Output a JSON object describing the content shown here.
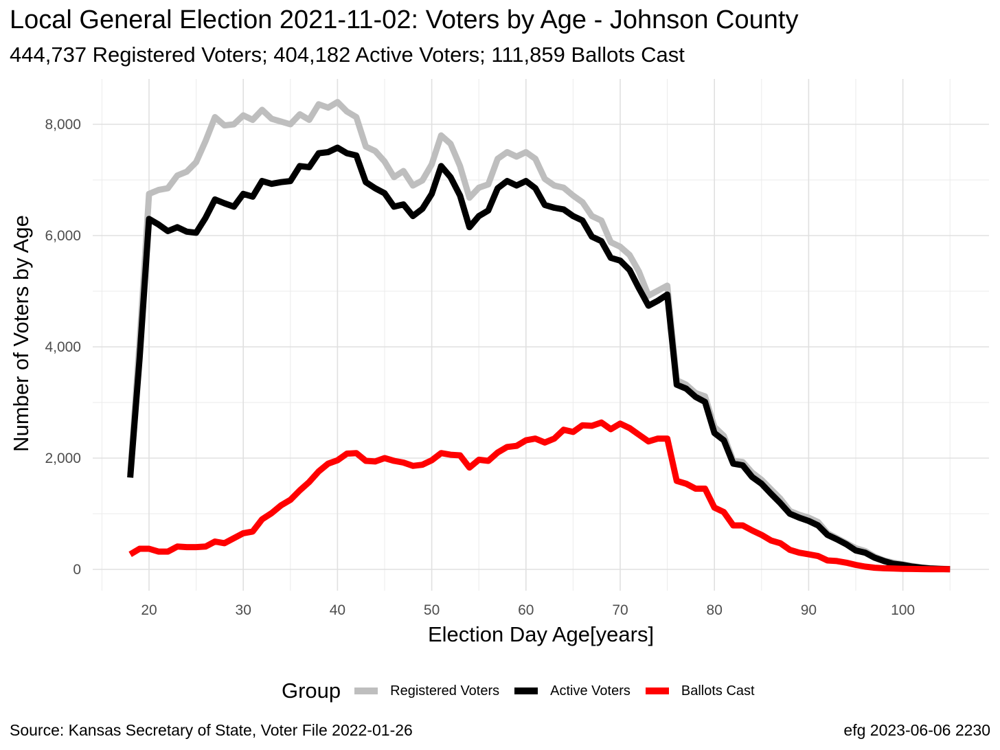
{
  "title": "Local General Election 2021-11-02:  Voters by Age - Johnson County",
  "subtitle": "444,737 Registered Voters; 404,182 Active Voters; 111,859 Ballots Cast",
  "caption_left": "Source:  Kansas Secretary of State, Voter File  2022-01-26",
  "caption_right": "efg 2023-06-06 2230",
  "legend_title": "Group",
  "chart_data": {
    "type": "line",
    "xlabel": "Election Day Age[years]",
    "ylabel": "Number of Voters by Age",
    "xlim": [
      18,
      105
    ],
    "ylim": [
      0,
      8400
    ],
    "xticks": [
      20,
      30,
      40,
      50,
      60,
      70,
      80,
      90,
      100
    ],
    "xtick_labels": [
      "20",
      "30",
      "40",
      "50",
      "60",
      "70",
      "80",
      "90",
      "100"
    ],
    "yticks": [
      0,
      2000,
      4000,
      6000,
      8000
    ],
    "ytick_labels": [
      "0",
      "2,000",
      "4,000",
      "6,000",
      "8,000"
    ],
    "grid": true,
    "legend_position": "bottom",
    "x": [
      18,
      19,
      20,
      21,
      22,
      23,
      24,
      25,
      26,
      27,
      28,
      29,
      30,
      31,
      32,
      33,
      34,
      35,
      36,
      37,
      38,
      39,
      40,
      41,
      42,
      43,
      44,
      45,
      46,
      47,
      48,
      49,
      50,
      51,
      52,
      53,
      54,
      55,
      56,
      57,
      58,
      59,
      60,
      61,
      62,
      63,
      64,
      65,
      66,
      67,
      68,
      69,
      70,
      71,
      72,
      73,
      74,
      75,
      76,
      77,
      78,
      79,
      80,
      81,
      82,
      83,
      84,
      85,
      86,
      87,
      88,
      89,
      90,
      91,
      92,
      93,
      94,
      95,
      96,
      97,
      98,
      99,
      100,
      101,
      102,
      103,
      104,
      105
    ],
    "series": [
      {
        "name": "Registered Voters",
        "color": "#bebebe",
        "values": [
          1700,
          4100,
          6750,
          6820,
          6850,
          7080,
          7150,
          7320,
          7700,
          8130,
          7980,
          8000,
          8160,
          8080,
          8260,
          8100,
          8050,
          8000,
          8180,
          8080,
          8360,
          8300,
          8400,
          8230,
          8130,
          7600,
          7520,
          7330,
          7050,
          7160,
          6900,
          6990,
          7280,
          7800,
          7650,
          7250,
          6680,
          6860,
          6920,
          7380,
          7500,
          7420,
          7500,
          7380,
          7020,
          6900,
          6860,
          6720,
          6600,
          6350,
          6270,
          5880,
          5800,
          5650,
          5350,
          4920,
          5010,
          5100,
          3400,
          3320,
          3170,
          3110,
          2560,
          2400,
          1950,
          1930,
          1740,
          1610,
          1440,
          1270,
          1050,
          980,
          930,
          850,
          650,
          560,
          470,
          380,
          330,
          230,
          160,
          120,
          90,
          60,
          35,
          20,
          12,
          5
        ]
      },
      {
        "name": "Active Voters",
        "color": "#000000",
        "values": [
          1650,
          3800,
          6300,
          6200,
          6080,
          6150,
          6070,
          6050,
          6320,
          6650,
          6580,
          6520,
          6750,
          6700,
          6980,
          6930,
          6960,
          6980,
          7250,
          7230,
          7480,
          7500,
          7580,
          7480,
          7440,
          6960,
          6850,
          6760,
          6520,
          6560,
          6350,
          6480,
          6750,
          7250,
          7050,
          6720,
          6150,
          6350,
          6450,
          6850,
          6980,
          6900,
          6980,
          6850,
          6550,
          6500,
          6470,
          6350,
          6270,
          5980,
          5900,
          5600,
          5550,
          5380,
          5050,
          4740,
          4830,
          4940,
          3320,
          3250,
          3100,
          3010,
          2450,
          2320,
          1900,
          1870,
          1660,
          1540,
          1360,
          1190,
          1000,
          930,
          870,
          790,
          620,
          540,
          450,
          340,
          300,
          210,
          150,
          100,
          80,
          50,
          30,
          15,
          8,
          3
        ]
      },
      {
        "name": "Ballots Cast",
        "color": "#ff0000",
        "values": [
          270,
          370,
          370,
          320,
          320,
          410,
          400,
          400,
          410,
          500,
          470,
          560,
          650,
          680,
          900,
          1010,
          1150,
          1250,
          1420,
          1570,
          1760,
          1900,
          1960,
          2080,
          2090,
          1950,
          1940,
          2000,
          1950,
          1920,
          1860,
          1880,
          1960,
          2090,
          2060,
          2050,
          1830,
          1970,
          1950,
          2100,
          2200,
          2220,
          2320,
          2350,
          2280,
          2350,
          2510,
          2470,
          2590,
          2580,
          2640,
          2520,
          2620,
          2540,
          2420,
          2300,
          2350,
          2350,
          1590,
          1540,
          1450,
          1450,
          1110,
          1030,
          790,
          790,
          700,
          620,
          520,
          470,
          350,
          300,
          270,
          240,
          160,
          150,
          120,
          80,
          50,
          30,
          20,
          15,
          10,
          8,
          5,
          4,
          3,
          2
        ]
      }
    ]
  }
}
